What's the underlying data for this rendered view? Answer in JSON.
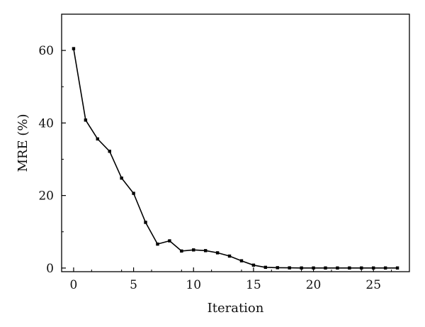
{
  "chart_data": {
    "type": "line",
    "title": "",
    "xlabel": "Iteration",
    "ylabel": "MRE (%)",
    "xlim": [
      -1,
      28
    ],
    "ylim": [
      -1,
      70
    ],
    "x_ticks": [
      0,
      5,
      10,
      15,
      20,
      25
    ],
    "y_ticks": [
      0,
      20,
      40,
      60
    ],
    "x_tick_labels": [
      "0",
      "5",
      "10",
      "15",
      "20",
      "25"
    ],
    "y_tick_labels": [
      "0",
      "20",
      "40",
      "60"
    ],
    "grid": false,
    "legend": "none",
    "line_color": "#000000",
    "marker": "square",
    "series": [
      {
        "x": [
          0,
          1,
          2,
          3,
          4,
          5,
          6,
          7,
          8,
          9,
          10,
          11,
          12,
          13,
          14,
          15,
          16,
          17,
          18,
          19,
          20,
          21,
          22,
          23,
          24,
          25,
          26,
          27
        ],
        "values": [
          60.5,
          40.8,
          35.6,
          32.2,
          24.8,
          20.6,
          12.6,
          6.6,
          7.5,
          4.7,
          5.0,
          4.8,
          4.2,
          3.3,
          2.0,
          0.8,
          0.2,
          0.1,
          0.05,
          0.02,
          0.02,
          0.02,
          0.02,
          0.02,
          0.02,
          0.02,
          0.02,
          0.02
        ]
      }
    ]
  }
}
